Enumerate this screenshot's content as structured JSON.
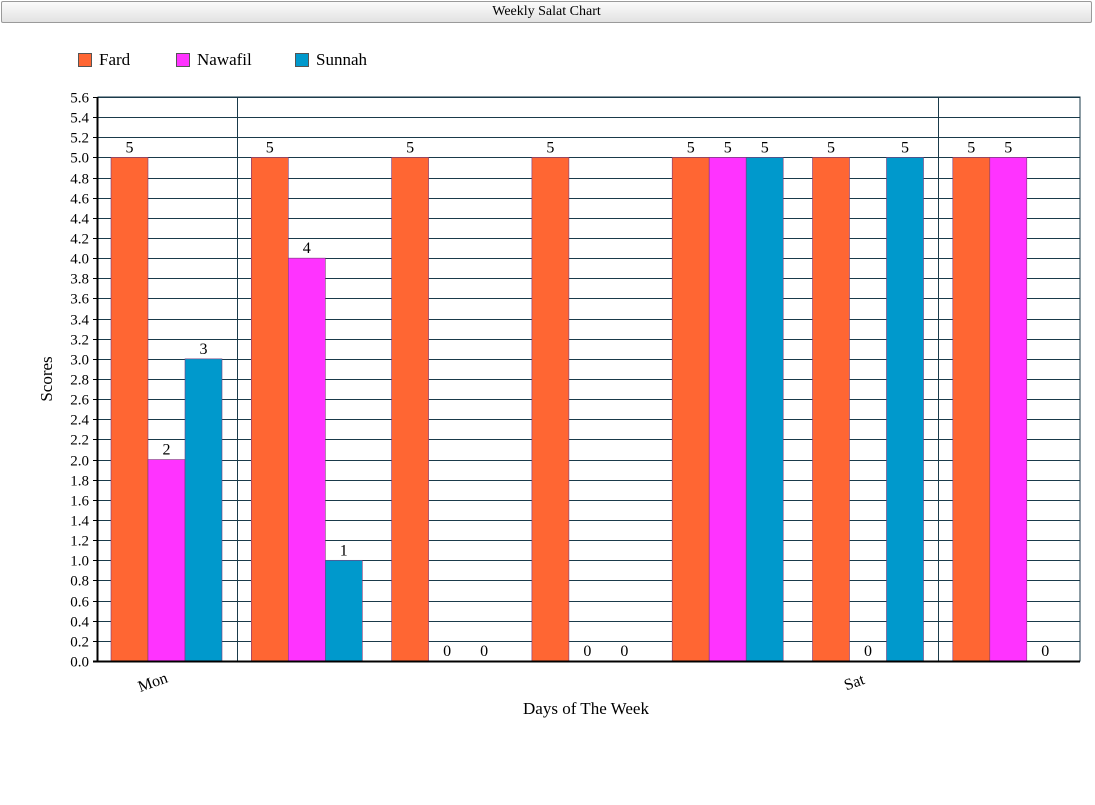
{
  "window": {
    "title": "Weekly Salat Chart"
  },
  "chart_data": {
    "type": "bar",
    "title": "Weekly Salat Chart",
    "xlabel": "Days of The Week",
    "ylabel": "Scores",
    "ylim": [
      0,
      5.6
    ],
    "ytick_step": 0.2,
    "grid": true,
    "legend_position": "top-left",
    "categories": [
      "Mon",
      "",
      "",
      "",
      "",
      "Sat",
      ""
    ],
    "series": [
      {
        "name": "Fard",
        "color": "#ff6633",
        "values": [
          5,
          5,
          5,
          5,
          5,
          5,
          5
        ]
      },
      {
        "name": "Nawafil",
        "color": "#ff33ff",
        "values": [
          2,
          4,
          0,
          0,
          5,
          0,
          5
        ]
      },
      {
        "name": "Sunnah",
        "color": "#0099cc",
        "values": [
          3,
          1,
          0,
          0,
          5,
          5,
          0
        ]
      }
    ]
  }
}
